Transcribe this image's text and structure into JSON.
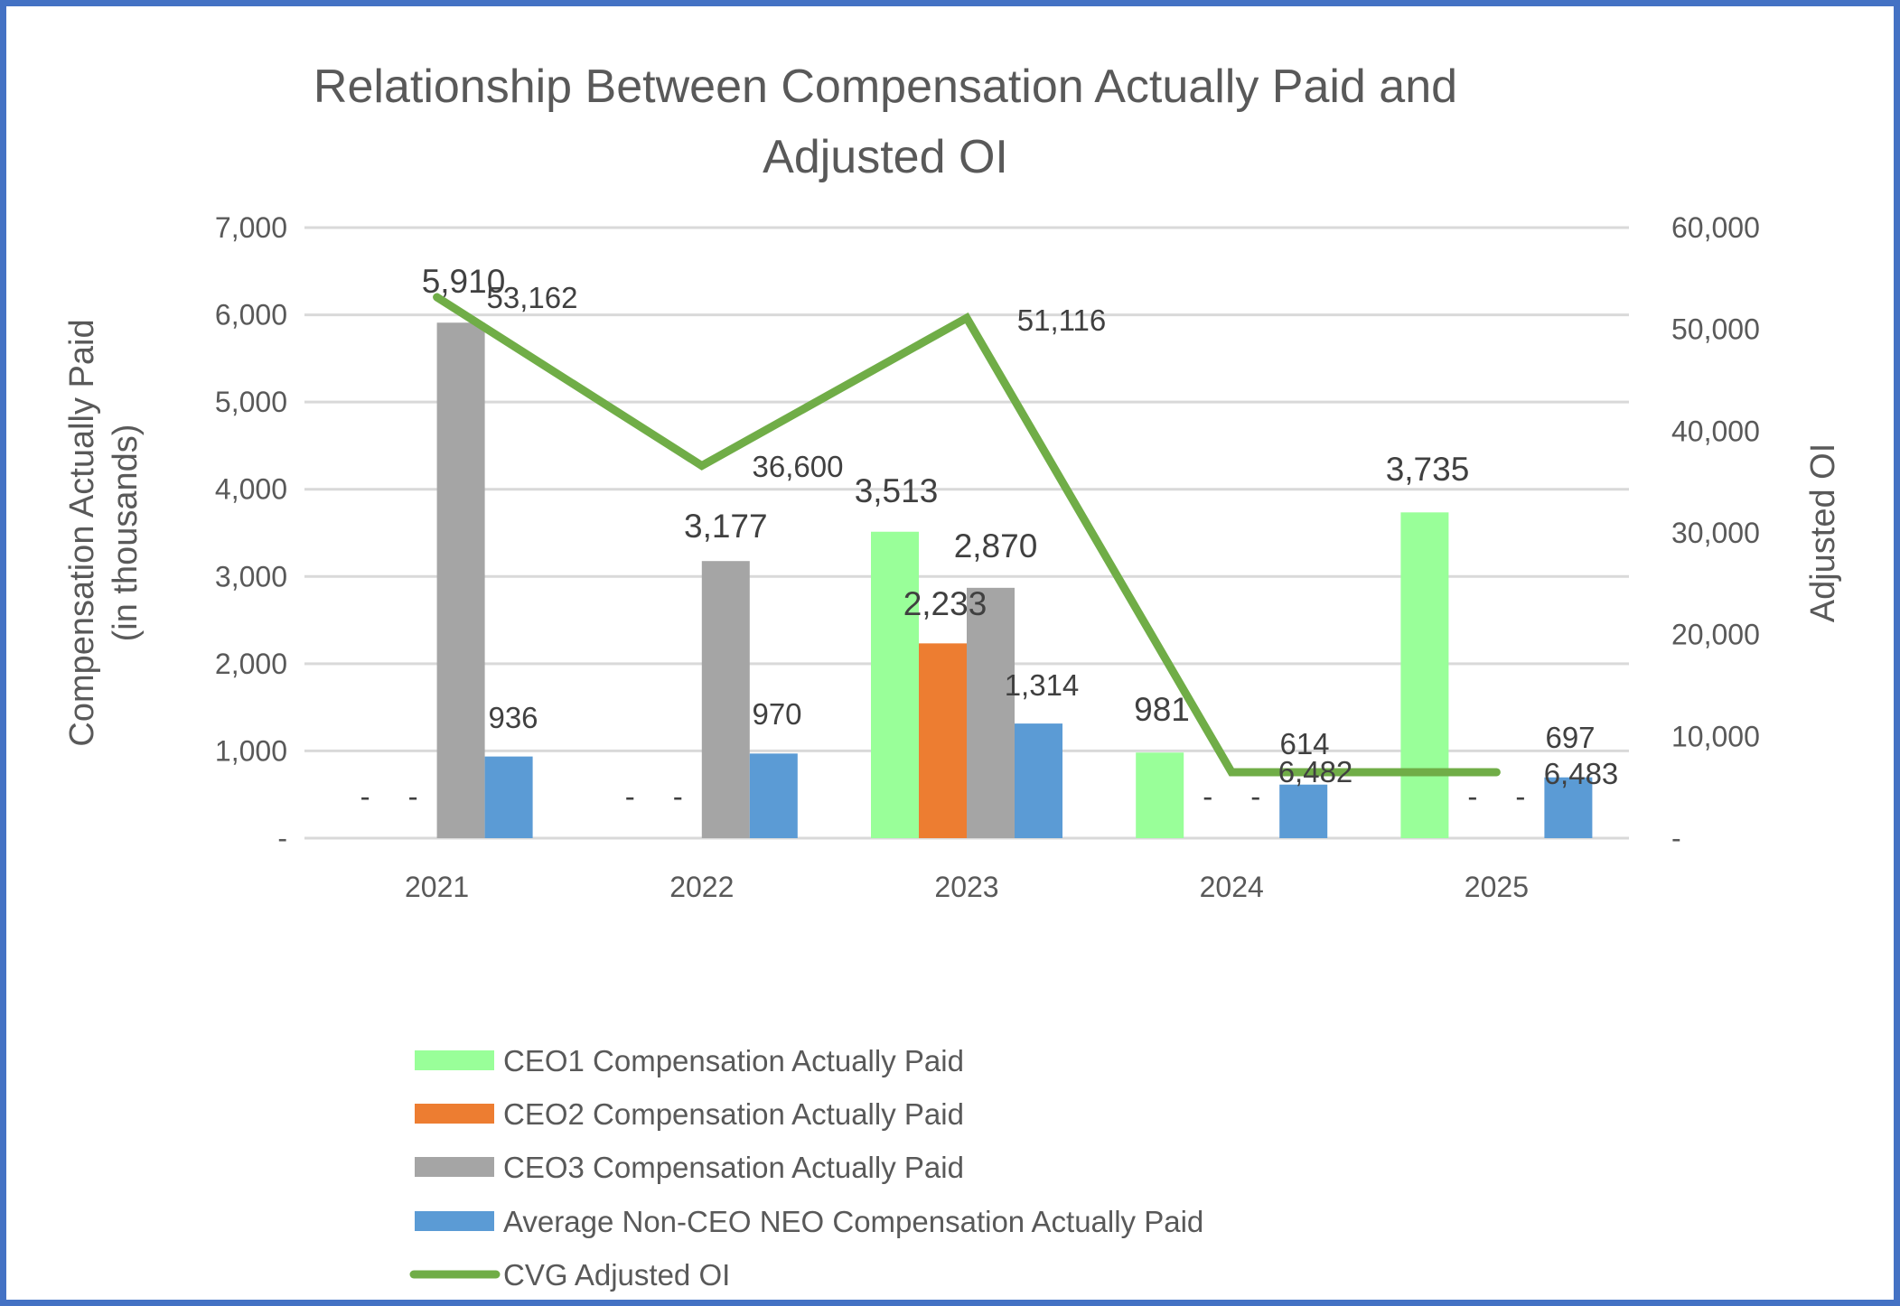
{
  "chart_data": {
    "type": "bar+line",
    "title": "Relationship Between Compensation Actually Paid and Adjusted OI",
    "title_lines": [
      "Relationship Between Compensation Actually Paid and",
      "Adjusted OI"
    ],
    "categories": [
      "2021",
      "2022",
      "2023",
      "2024",
      "2025"
    ],
    "y_left": {
      "label_lines": [
        "Compensation Actually Paid",
        "(in thousands)"
      ],
      "range": [
        0,
        7000
      ],
      "ticks": [
        0,
        1000,
        2000,
        3000,
        4000,
        5000,
        6000,
        7000
      ],
      "tick_labels": [
        "-",
        "1,000",
        "2,000",
        "3,000",
        "4,000",
        "5,000",
        "6,000",
        "7,000"
      ]
    },
    "y_right": {
      "label": "Adjusted OI",
      "range": [
        0,
        60000
      ],
      "ticks": [
        0,
        10000,
        20000,
        30000,
        40000,
        50000,
        60000
      ],
      "tick_labels": [
        "-",
        "10,000",
        "20,000",
        "30,000",
        "40,000",
        "50,000",
        "60,000"
      ]
    },
    "grid": true,
    "legend_position": "bottom",
    "bar_series": [
      {
        "name": "CEO1 Compensation Actually Paid",
        "color": "#99FF99",
        "values": [
          0,
          0,
          3513,
          981,
          3735
        ],
        "labels": [
          "-",
          "-",
          "3,513",
          "981",
          "3,735"
        ]
      },
      {
        "name": "CEO2 Compensation Actually Paid",
        "color": "#ED7D31",
        "values": [
          0,
          0,
          2233,
          0,
          0
        ],
        "labels": [
          "-",
          "-",
          "2,233",
          "-",
          "-"
        ]
      },
      {
        "name": "CEO3 Compensation Actually Paid",
        "color": "#A5A5A5",
        "values": [
          5910,
          3177,
          2870,
          0,
          0
        ],
        "labels": [
          "5,910",
          "3,177",
          "2,870",
          "-",
          "-"
        ]
      },
      {
        "name": "Average Non-CEO NEO Compensation Actually Paid",
        "color": "#5B9BD5",
        "values": [
          936,
          970,
          1314,
          614,
          697
        ],
        "labels": [
          "936",
          "970",
          "1,314",
          "614",
          "697"
        ]
      }
    ],
    "line_series": {
      "name": "CVG Adjusted OI",
      "color": "#70AD47",
      "axis": "right",
      "values": [
        53162,
        36600,
        51116,
        6482,
        6483
      ],
      "labels": [
        "53,162",
        "36,600",
        "51,116",
        "6,482",
        "6,483"
      ]
    }
  },
  "style": {
    "border_color": "#4472C4",
    "grid_color": "#D9D9D9",
    "text_color": "#595959"
  }
}
